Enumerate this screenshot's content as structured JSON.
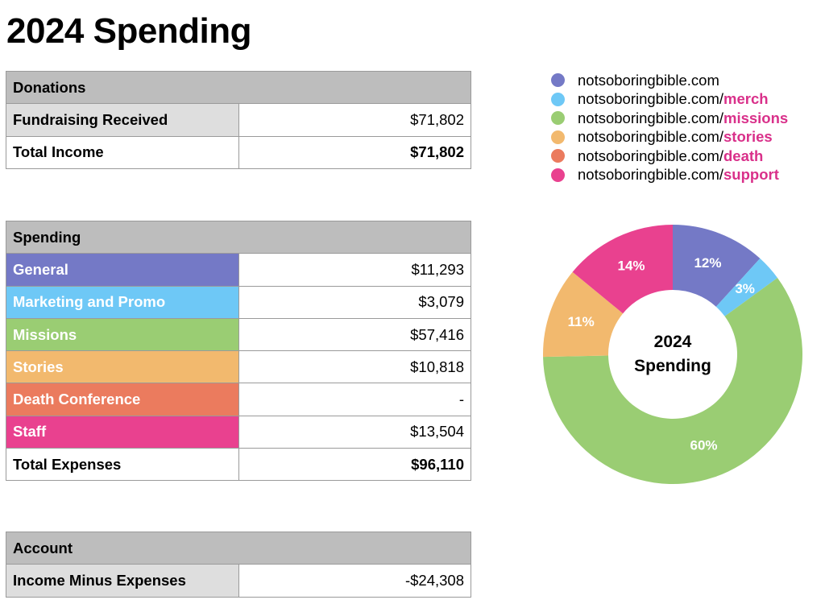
{
  "title": "2024 Spending",
  "donations": {
    "header": "Donations",
    "rows": [
      {
        "label": "Fundraising Received",
        "value": "$71,802"
      }
    ],
    "total": {
      "label": "Total Income",
      "value": "$71,802"
    }
  },
  "spending": {
    "header": "Spending",
    "rows": [
      {
        "label": "General",
        "value": "$11,293",
        "color": "#7479c6"
      },
      {
        "label": "Marketing and Promo",
        "value": "$3,079",
        "color": "#6ec8f6"
      },
      {
        "label": "Missions",
        "value": "$57,416",
        "color": "#9acd73"
      },
      {
        "label": "Stories",
        "value": "$10,818",
        "color": "#f2b96e"
      },
      {
        "label": "Death Conference",
        "value": "-",
        "color": "#eb7b5e"
      },
      {
        "label": "Staff",
        "value": "$13,504",
        "color": "#e9418f"
      }
    ],
    "total": {
      "label": "Total Expenses",
      "value": "$96,110"
    }
  },
  "account": {
    "header": "Account",
    "rows": [
      {
        "label": "Income Minus Expenses",
        "value": "-$24,308"
      }
    ]
  },
  "legend": [
    {
      "base": "notsoboringbible.com",
      "suffix": "",
      "color": "#7479c6"
    },
    {
      "base": "notsoboringbible.com/",
      "suffix": "merch",
      "color": "#6ec8f6"
    },
    {
      "base": "notsoboringbible.com/",
      "suffix": "missions",
      "color": "#9acd73"
    },
    {
      "base": "notsoboringbible.com/",
      "suffix": "stories",
      "color": "#f2b96e"
    },
    {
      "base": "notsoboringbible.com/",
      "suffix": "death",
      "color": "#eb7b5e"
    },
    {
      "base": "notsoboringbible.com/",
      "suffix": "support",
      "color": "#e9418f"
    }
  ],
  "chart_data": {
    "type": "pie",
    "title": "2024 Spending",
    "center_label": [
      "2024",
      "Spending"
    ],
    "labels": [
      "General",
      "Marketing and Promo",
      "Missions",
      "Stories",
      "Death Conference",
      "Staff"
    ],
    "values": [
      11293,
      3079,
      57416,
      10818,
      0,
      13504
    ],
    "percent_labels": [
      "12%",
      "3%",
      "60%",
      "11%",
      "",
      "14%"
    ],
    "colors": [
      "#7479c6",
      "#6ec8f6",
      "#9acd73",
      "#f2b96e",
      "#eb7b5e",
      "#e9418f"
    ],
    "legend_position": "top-right"
  }
}
